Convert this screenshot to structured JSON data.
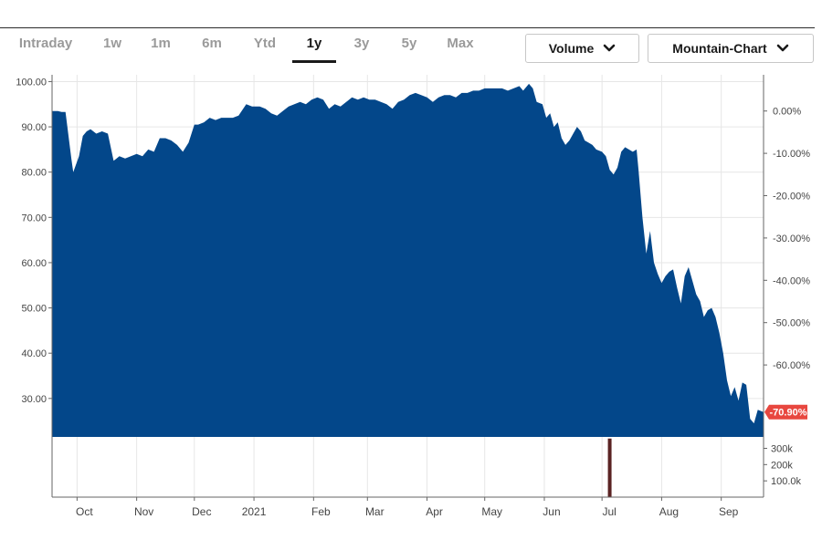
{
  "tabs": [
    {
      "label": "Intraday",
      "active": false
    },
    {
      "label": "1w",
      "active": false
    },
    {
      "label": "1m",
      "active": false
    },
    {
      "label": "6m",
      "active": false
    },
    {
      "label": "Ytd",
      "active": false
    },
    {
      "label": "1y",
      "active": true
    },
    {
      "label": "3y",
      "active": false
    },
    {
      "label": "5y",
      "active": false
    },
    {
      "label": "Max",
      "active": false
    }
  ],
  "controls": {
    "volume_label": "Volume",
    "chart_type_label": "Mountain-Chart"
  },
  "colors": {
    "area": "#03478a",
    "last_badge": "#e8473f",
    "volume_bar": "#5a2222",
    "grid": "#e6e6e6"
  },
  "chart_data": {
    "type": "area",
    "title": "",
    "xlabel": "",
    "ylabel": "",
    "ylim": [
      21.5,
      101.5
    ],
    "y_ticks": [
      "100.00",
      "90.00",
      "80.00",
      "70.00",
      "60.00",
      "50.00",
      "40.00",
      "30.00"
    ],
    "y_tick_values": [
      100,
      90,
      80,
      70,
      60,
      50,
      40,
      30
    ],
    "right_axis_ticks": [
      "0.00%",
      "-10.00%",
      "-20.00%",
      "-30.00%",
      "-40.00%",
      "-50.00%",
      "-60.00%"
    ],
    "right_axis_values": [
      0,
      -10,
      -20,
      -30,
      -40,
      -50,
      -60
    ],
    "last_change_label": "-70.90%",
    "x_range": [
      "2020-09-18",
      "2021-09-23"
    ],
    "x_ticks": [
      {
        "label": "Oct",
        "date": "2020-10-01"
      },
      {
        "label": "Nov",
        "date": "2020-11-01"
      },
      {
        "label": "Dec",
        "date": "2020-12-01"
      },
      {
        "label": "2021",
        "date": "2021-01-01"
      },
      {
        "label": "Feb",
        "date": "2021-02-01"
      },
      {
        "label": "Mar",
        "date": "2021-03-01"
      },
      {
        "label": "Apr",
        "date": "2021-04-01"
      },
      {
        "label": "May",
        "date": "2021-05-01"
      },
      {
        "label": "Jun",
        "date": "2021-06-01"
      },
      {
        "label": "Jul",
        "date": "2021-07-01"
      },
      {
        "label": "Aug",
        "date": "2021-08-01"
      },
      {
        "label": "Sep",
        "date": "2021-09-01"
      }
    ],
    "series": [
      {
        "name": "Price",
        "points": [
          [
            "2020-09-18",
            93.5
          ],
          [
            "2020-09-21",
            93.5
          ],
          [
            "2020-09-23",
            93.3
          ],
          [
            "2020-09-25",
            93.3
          ],
          [
            "2020-09-28",
            83.0
          ],
          [
            "2020-09-29",
            80.0
          ],
          [
            "2020-10-02",
            83.5
          ],
          [
            "2020-10-04",
            88.0
          ],
          [
            "2020-10-06",
            89.0
          ],
          [
            "2020-10-08",
            89.5
          ],
          [
            "2020-10-11",
            88.5
          ],
          [
            "2020-10-14",
            89.0
          ],
          [
            "2020-10-17",
            88.5
          ],
          [
            "2020-10-20",
            82.5
          ],
          [
            "2020-10-23",
            83.5
          ],
          [
            "2020-10-26",
            83.0
          ],
          [
            "2020-10-29",
            83.5
          ],
          [
            "2020-11-01",
            84.0
          ],
          [
            "2020-11-04",
            83.5
          ],
          [
            "2020-11-07",
            85.0
          ],
          [
            "2020-11-10",
            84.5
          ],
          [
            "2020-11-13",
            87.5
          ],
          [
            "2020-11-16",
            87.5
          ],
          [
            "2020-11-19",
            87.0
          ],
          [
            "2020-11-22",
            86.0
          ],
          [
            "2020-11-25",
            84.5
          ],
          [
            "2020-11-28",
            86.5
          ],
          [
            "2020-12-01",
            90.5
          ],
          [
            "2020-12-03",
            90.5
          ],
          [
            "2020-12-06",
            91.0
          ],
          [
            "2020-12-09",
            92.0
          ],
          [
            "2020-12-12",
            91.5
          ],
          [
            "2020-12-15",
            92.0
          ],
          [
            "2020-12-18",
            92.0
          ],
          [
            "2020-12-21",
            92.0
          ],
          [
            "2020-12-24",
            92.5
          ],
          [
            "2020-12-28",
            95.0
          ],
          [
            "2020-12-31",
            94.5
          ],
          [
            "2021-01-04",
            94.5
          ],
          [
            "2021-01-07",
            94.0
          ],
          [
            "2021-01-10",
            93.0
          ],
          [
            "2021-01-13",
            92.5
          ],
          [
            "2021-01-16",
            93.5
          ],
          [
            "2021-01-19",
            94.5
          ],
          [
            "2021-01-22",
            95.0
          ],
          [
            "2021-01-25",
            95.5
          ],
          [
            "2021-01-28",
            95.0
          ],
          [
            "2021-01-31",
            96.0
          ],
          [
            "2021-02-03",
            96.5
          ],
          [
            "2021-02-06",
            96.0
          ],
          [
            "2021-02-09",
            94.0
          ],
          [
            "2021-02-12",
            95.0
          ],
          [
            "2021-02-15",
            94.5
          ],
          [
            "2021-02-18",
            95.5
          ],
          [
            "2021-02-21",
            96.5
          ],
          [
            "2021-02-24",
            96.0
          ],
          [
            "2021-02-27",
            96.5
          ],
          [
            "2021-03-02",
            96.0
          ],
          [
            "2021-03-05",
            96.0
          ],
          [
            "2021-03-08",
            95.5
          ],
          [
            "2021-03-11",
            95.0
          ],
          [
            "2021-03-14",
            94.0
          ],
          [
            "2021-03-17",
            95.5
          ],
          [
            "2021-03-20",
            96.0
          ],
          [
            "2021-03-23",
            97.0
          ],
          [
            "2021-03-26",
            97.5
          ],
          [
            "2021-03-29",
            97.0
          ],
          [
            "2021-04-01",
            96.5
          ],
          [
            "2021-04-04",
            95.5
          ],
          [
            "2021-04-07",
            96.5
          ],
          [
            "2021-04-10",
            97.0
          ],
          [
            "2021-04-13",
            97.0
          ],
          [
            "2021-04-16",
            96.5
          ],
          [
            "2021-04-19",
            97.5
          ],
          [
            "2021-04-22",
            97.5
          ],
          [
            "2021-04-25",
            98.0
          ],
          [
            "2021-04-28",
            98.0
          ],
          [
            "2021-05-01",
            98.5
          ],
          [
            "2021-05-04",
            98.5
          ],
          [
            "2021-05-07",
            98.5
          ],
          [
            "2021-05-10",
            98.5
          ],
          [
            "2021-05-13",
            98.0
          ],
          [
            "2021-05-16",
            98.5
          ],
          [
            "2021-05-19",
            99.0
          ],
          [
            "2021-05-21",
            98.0
          ],
          [
            "2021-05-24",
            99.5
          ],
          [
            "2021-05-26",
            98.5
          ],
          [
            "2021-05-28",
            95.5
          ],
          [
            "2021-05-31",
            95.0
          ],
          [
            "2021-06-02",
            92.0
          ],
          [
            "2021-06-04",
            93.0
          ],
          [
            "2021-06-06",
            90.0
          ],
          [
            "2021-06-08",
            91.0
          ],
          [
            "2021-06-10",
            87.5
          ],
          [
            "2021-06-12",
            86.0
          ],
          [
            "2021-06-14",
            87.0
          ],
          [
            "2021-06-16",
            88.5
          ],
          [
            "2021-06-18",
            90.0
          ],
          [
            "2021-06-20",
            89.0
          ],
          [
            "2021-06-22",
            87.0
          ],
          [
            "2021-06-24",
            86.5
          ],
          [
            "2021-06-26",
            86.0
          ],
          [
            "2021-06-28",
            85.0
          ],
          [
            "2021-07-01",
            84.5
          ],
          [
            "2021-07-03",
            83.5
          ],
          [
            "2021-07-05",
            80.5
          ],
          [
            "2021-07-07",
            79.5
          ],
          [
            "2021-07-09",
            81.0
          ],
          [
            "2021-07-11",
            84.5
          ],
          [
            "2021-07-13",
            85.5
          ],
          [
            "2021-07-15",
            85.0
          ],
          [
            "2021-07-17",
            84.5
          ],
          [
            "2021-07-19",
            85.0
          ],
          [
            "2021-07-20",
            80.5
          ],
          [
            "2021-07-22",
            70.0
          ],
          [
            "2021-07-24",
            62.0
          ],
          [
            "2021-07-26",
            67.0
          ],
          [
            "2021-07-28",
            60.0
          ],
          [
            "2021-07-30",
            57.5
          ],
          [
            "2021-08-01",
            55.5
          ],
          [
            "2021-08-03",
            57.0
          ],
          [
            "2021-08-05",
            58.0
          ],
          [
            "2021-08-07",
            58.5
          ],
          [
            "2021-08-09",
            54.5
          ],
          [
            "2021-08-11",
            51.0
          ],
          [
            "2021-08-13",
            57.0
          ],
          [
            "2021-08-15",
            59.0
          ],
          [
            "2021-08-17",
            56.0
          ],
          [
            "2021-08-19",
            53.0
          ],
          [
            "2021-08-21",
            51.5
          ],
          [
            "2021-08-23",
            48.0
          ],
          [
            "2021-08-25",
            49.5
          ],
          [
            "2021-08-27",
            50.0
          ],
          [
            "2021-08-29",
            48.0
          ],
          [
            "2021-08-31",
            44.5
          ],
          [
            "2021-09-02",
            40.0
          ],
          [
            "2021-09-04",
            34.0
          ],
          [
            "2021-09-06",
            30.5
          ],
          [
            "2021-09-08",
            32.5
          ],
          [
            "2021-09-10",
            29.5
          ],
          [
            "2021-09-12",
            33.5
          ],
          [
            "2021-09-14",
            33.0
          ],
          [
            "2021-09-16",
            25.5
          ],
          [
            "2021-09-18",
            24.5
          ],
          [
            "2021-09-20",
            27.5
          ],
          [
            "2021-09-23",
            27.0
          ]
        ]
      },
      {
        "name": "Volume",
        "volume_ticks": [
          "300k",
          "200k",
          "100.0k"
        ],
        "volume_tick_values": [
          300000,
          200000,
          100000
        ],
        "ylim": [
          0,
          370000
        ],
        "bars": [
          {
            "date": "2021-07-05",
            "value": 360000
          }
        ]
      }
    ]
  }
}
